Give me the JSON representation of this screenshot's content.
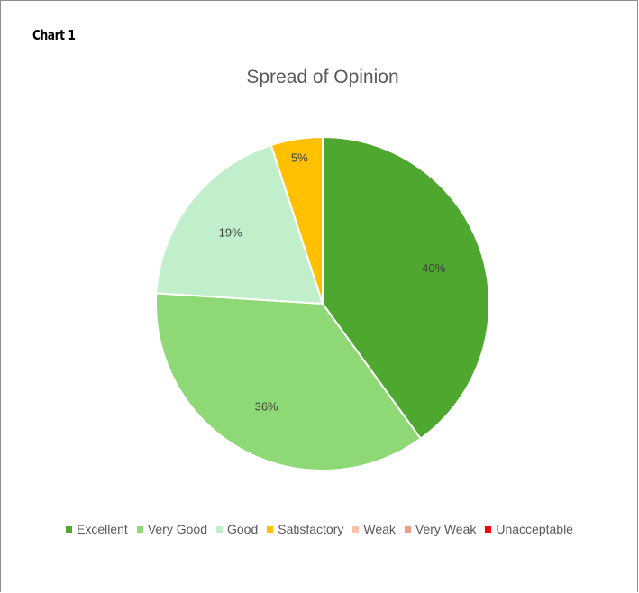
{
  "heading": "Chart 1",
  "chart_data": {
    "type": "pie",
    "title": "Spread of Opinion",
    "categories": [
      "Excellent",
      "Very Good",
      "Good",
      "Satisfactory",
      "Weak",
      "Very Weak",
      "Unacceptable"
    ],
    "values": [
      40,
      36,
      19,
      5,
      0,
      0,
      0
    ],
    "data_labels": [
      "40%",
      "36%",
      "19%",
      "5%",
      "",
      "",
      ""
    ],
    "colors": [
      "#4ea72e",
      "#8fd876",
      "#c2efcb",
      "#ffc000",
      "#f8c3a8",
      "#e99f88",
      "#ff0000"
    ],
    "legend_position": "bottom",
    "start_angle": "12 o'clock, clockwise"
  }
}
